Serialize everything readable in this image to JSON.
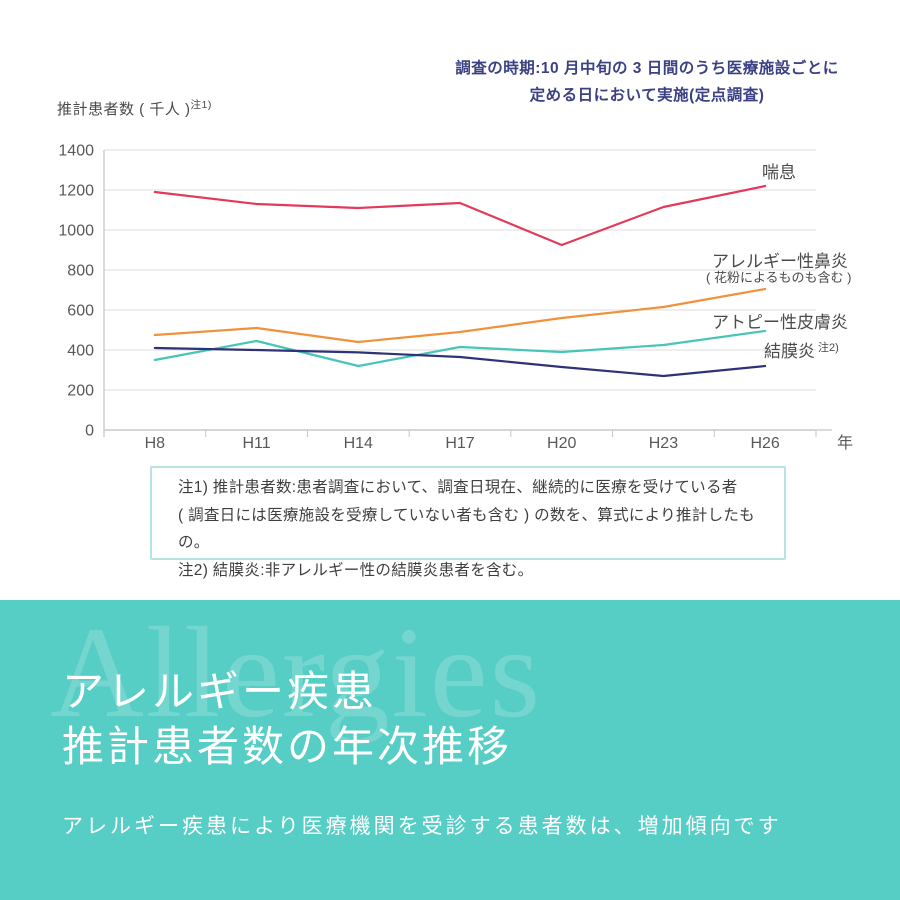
{
  "survey_note": {
    "line1": "調査の時期:10 月中旬の 3 日間のうち医療施設ごとに",
    "line2": "定める日において実施(定点調査)"
  },
  "y_axis": {
    "title": "推計患者数 ( 千人 )",
    "title_sup": "注1)"
  },
  "chart_data": {
    "type": "line",
    "title": "アレルギー疾患推計患者数の年次推移",
    "xlabel": "年",
    "ylabel": "推計患者数(千人)",
    "x_unit": "年",
    "categories": [
      "H8",
      "H11",
      "H14",
      "H17",
      "H20",
      "H23",
      "H26"
    ],
    "ylim": [
      0,
      1400
    ],
    "ytick_step": 200,
    "grid": true,
    "legend_position": "labels-at-line-ends",
    "series": [
      {
        "key": "asthma",
        "name": "喘息",
        "values": [
          1190,
          1130,
          1110,
          1135,
          925,
          1115,
          1220
        ],
        "color": "#e23a5b"
      },
      {
        "key": "allergic-rhinitis",
        "name": "アレルギー性鼻炎",
        "sublabel": "( 花粉によるものも含む )",
        "values": [
          475,
          510,
          440,
          490,
          560,
          615,
          705
        ],
        "color": "#f0923c"
      },
      {
        "key": "atopic-dermatitis",
        "name": "アトピー性皮膚炎",
        "values": [
          350,
          445,
          320,
          415,
          390,
          425,
          495
        ],
        "color": "#49c5b8"
      },
      {
        "key": "conjunctivitis",
        "name": "結膜炎",
        "sup": "注2)",
        "values": [
          410,
          400,
          388,
          365,
          315,
          270,
          320
        ],
        "color": "#2e3276"
      }
    ]
  },
  "notes": {
    "note1_line1": "注1) 推計患者数:患者調査において、調査日現在、継続的に医療を受けている者",
    "note1_line2": "( 調査日には医療施設を受療していない者も含む ) の数を、算式により推計したもの。",
    "note2": "注2) 結膜炎:非アレルギー性の結膜炎患者を含む。"
  },
  "banner": {
    "watermark": "Allergies",
    "title_line1": "アレルギー疾患",
    "title_line2": "推計患者数の年次推移",
    "subtitle": "アレルギー疾患により医療機関を受診する患者数は、増加傾向です",
    "background": "#56cdc5"
  }
}
